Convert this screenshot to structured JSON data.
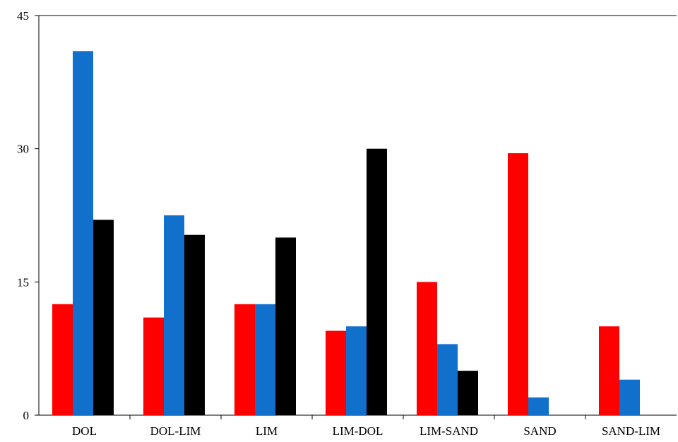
{
  "chart_data": {
    "type": "bar",
    "title": "",
    "xlabel": "",
    "ylabel": "",
    "ylim": [
      0,
      45
    ],
    "yticks": [
      "0",
      "15",
      "30",
      "45"
    ],
    "grid": false,
    "categories": [
      "DOL",
      "DOL-LIM",
      "LIM",
      "LIM-DOL",
      "LIM-SAND",
      "SAND",
      "SAND-LIM"
    ],
    "series": [
      {
        "color": "#ff0000",
        "values": [
          12.5,
          11,
          12.5,
          9.5,
          15,
          29.5,
          10
        ]
      },
      {
        "color": "#1170cc",
        "values": [
          41,
          22.5,
          12.5,
          10,
          8,
          2,
          4
        ]
      },
      {
        "color": "#000000",
        "values": [
          22,
          20.3,
          20,
          30,
          5,
          0,
          0
        ]
      }
    ]
  }
}
